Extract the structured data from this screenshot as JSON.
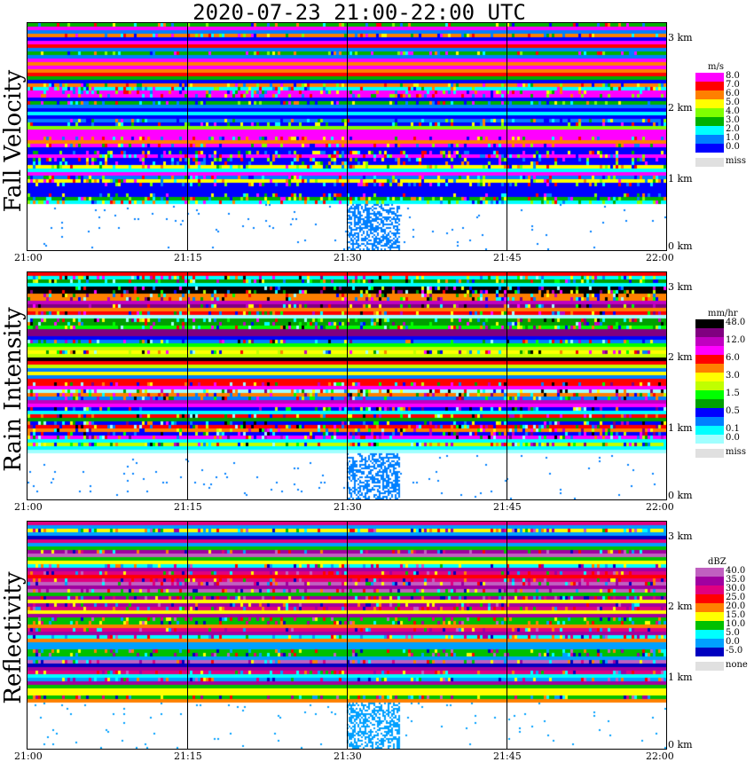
{
  "title": "2020-07-23   21:00-22:00 UTC",
  "colors": {
    "miss": "#e0e0e0"
  },
  "chart_data": [
    {
      "type": "heatmap",
      "name": "Fall Velocity",
      "unit": "m/s",
      "x_ticks": [
        "21:00",
        "21:15",
        "21:30",
        "21:45",
        "22:00"
      ],
      "y_ticks": [
        "3 km",
        "2 km",
        "1 km",
        "0 km"
      ],
      "legend": [
        {
          "label": "8.0",
          "color": "#ff00ff"
        },
        {
          "label": "7.0",
          "color": "#ff0000"
        },
        {
          "label": "6.0",
          "color": "#ff8000"
        },
        {
          "label": "5.0",
          "color": "#ffff00"
        },
        {
          "label": "4.0",
          "color": "#80ff00"
        },
        {
          "label": "3.0",
          "color": "#00b000"
        },
        {
          "label": "2.0",
          "color": "#00ffff"
        },
        {
          "label": "1.0",
          "color": "#0080ff"
        },
        {
          "label": "0.0",
          "color": "#0000ff"
        },
        {
          "label": "miss",
          "color": "#e0e0e0"
        }
      ]
    },
    {
      "type": "heatmap",
      "name": "Rain Intensity",
      "unit": "mm/hr",
      "x_ticks": [
        "21:00",
        "21:15",
        "21:30",
        "21:45",
        "22:00"
      ],
      "y_ticks": [
        "3 km",
        "2 km",
        "1 km",
        "0 km"
      ],
      "legend": [
        {
          "label": "48.0",
          "color": "#000000"
        },
        {
          "label": "",
          "color": "#800080"
        },
        {
          "label": "12.0",
          "color": "#c000c0"
        },
        {
          "label": "",
          "color": "#ff00ff"
        },
        {
          "label": "6.0",
          "color": "#ff0000"
        },
        {
          "label": "",
          "color": "#ff8000"
        },
        {
          "label": "3.0",
          "color": "#ffff00"
        },
        {
          "label": "",
          "color": "#c0ff00"
        },
        {
          "label": "1.5",
          "color": "#00ff00"
        },
        {
          "label": "",
          "color": "#00a000"
        },
        {
          "label": "0.5",
          "color": "#0000ff"
        },
        {
          "label": "",
          "color": "#0080ff"
        },
        {
          "label": "0.1",
          "color": "#00ffff"
        },
        {
          "label": "0.0",
          "color": "#a0ffff"
        },
        {
          "label": "miss",
          "color": "#e0e0e0"
        }
      ]
    },
    {
      "type": "heatmap",
      "name": "Reflectivity",
      "unit": "dBZ",
      "x_ticks": [
        "21:00",
        "21:15",
        "21:30",
        "21:45",
        "22:00"
      ],
      "y_ticks": [
        "3 km",
        "2 km",
        "1 km",
        "0 km"
      ],
      "legend": [
        {
          "label": "40.0",
          "color": "#c060c0"
        },
        {
          "label": "35.0",
          "color": "#a000a0"
        },
        {
          "label": "30.0",
          "color": "#e00080"
        },
        {
          "label": "25.0",
          "color": "#ff0000"
        },
        {
          "label": "20.0",
          "color": "#ff8000"
        },
        {
          "label": "15.0",
          "color": "#ffff00"
        },
        {
          "label": "10.0",
          "color": "#00c000"
        },
        {
          "label": "5.0",
          "color": "#00ffff"
        },
        {
          "label": "0.0",
          "color": "#00a0ff"
        },
        {
          "label": "-5.0",
          "color": "#0000c0"
        },
        {
          "label": "none",
          "color": "#e0e0e0"
        }
      ]
    }
  ]
}
